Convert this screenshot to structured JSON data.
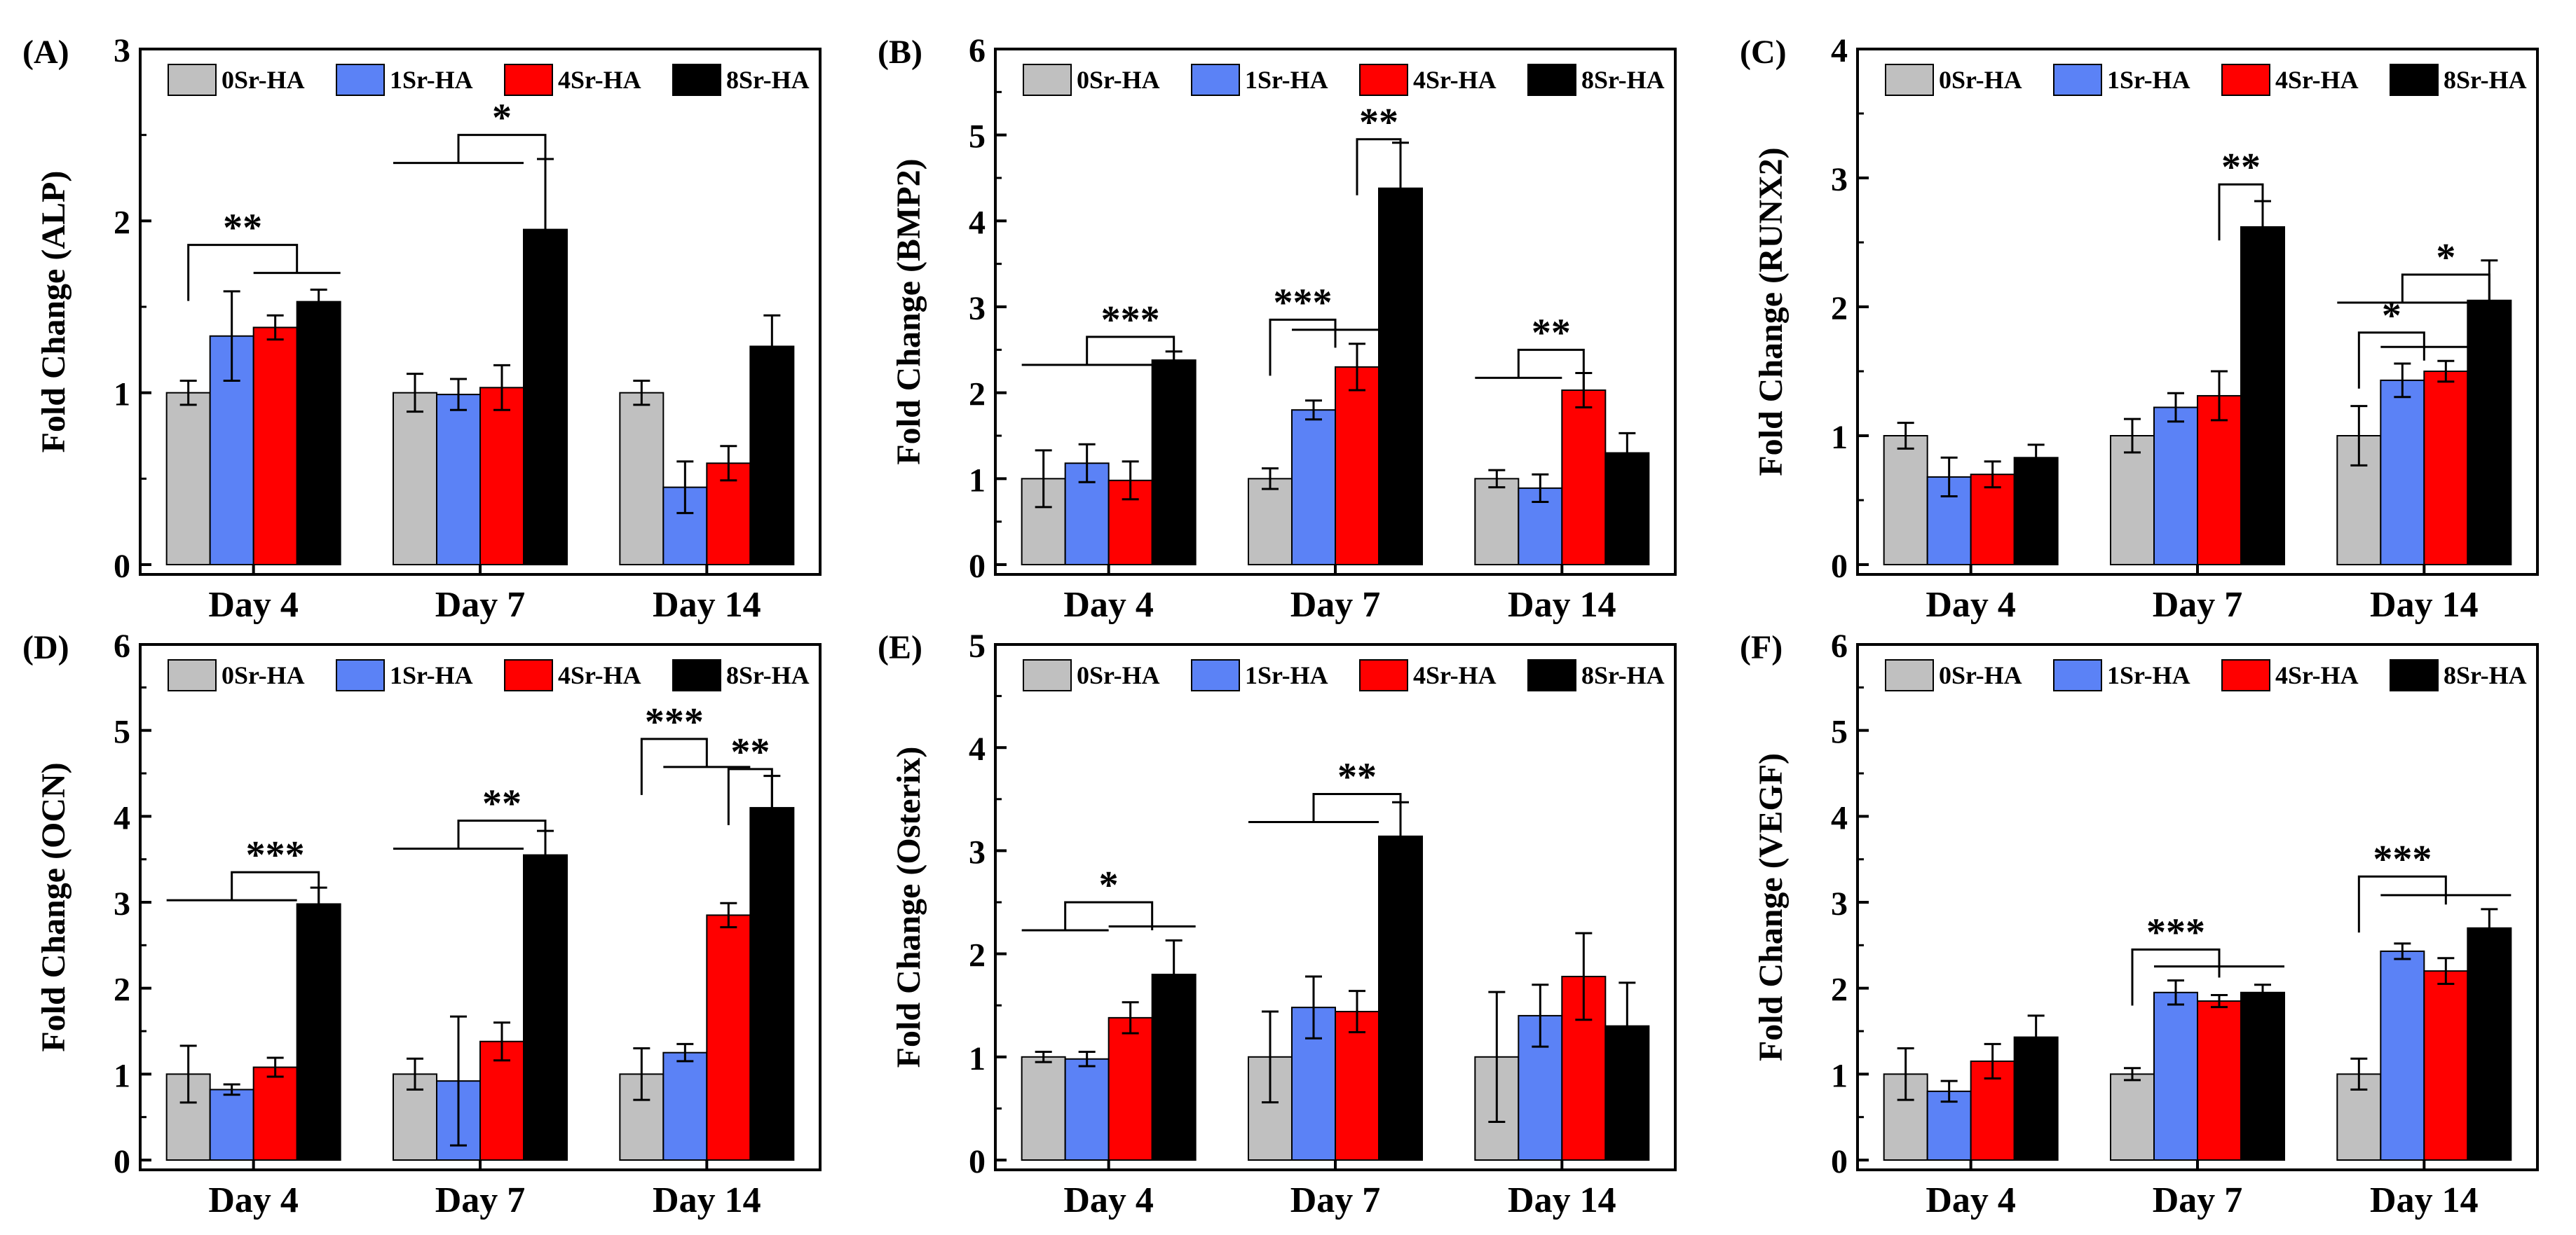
{
  "figure": {
    "series_names": [
      "0Sr-HA",
      "1Sr-HA",
      "4Sr-HA",
      "8Sr-HA"
    ],
    "series_colors": [
      "#c0c0c0",
      "#5b82f6",
      "#ff0000",
      "#000000"
    ],
    "categories": [
      "Day 4",
      "Day 7",
      "Day 14"
    ]
  },
  "chart_data": [
    {
      "type": "bar",
      "panel_label": "(A)",
      "ylabel": "Fold Change (ALP)",
      "ylim": [
        0,
        3
      ],
      "yticks": [
        "0",
        "1",
        "2",
        "3"
      ],
      "categories": [
        "Day 4",
        "Day 7",
        "Day 14"
      ],
      "legend": [
        "0Sr-HA",
        "1Sr-HA",
        "4Sr-HA",
        "8Sr-HA"
      ],
      "series": [
        {
          "name": "0Sr-HA",
          "values": [
            1.0,
            1.0,
            1.0
          ],
          "errors": [
            0.07,
            0.11,
            0.07
          ]
        },
        {
          "name": "1Sr-HA",
          "values": [
            1.33,
            0.99,
            0.45
          ],
          "errors": [
            0.26,
            0.09,
            0.15
          ]
        },
        {
          "name": "4Sr-HA",
          "values": [
            1.38,
            1.03,
            0.59
          ],
          "errors": [
            0.07,
            0.13,
            0.1
          ]
        },
        {
          "name": "8Sr-HA",
          "values": [
            1.53,
            1.95,
            1.27
          ],
          "errors": [
            0.07,
            0.41,
            0.18
          ]
        }
      ],
      "annotations": [
        {
          "text": "**",
          "cat": 0,
          "from": 0,
          "to": [
            2,
            3
          ],
          "y": 1.86
        },
        {
          "text": "*",
          "cat": 1,
          "from": [
            0,
            1,
            2
          ],
          "to": 3,
          "y": 2.5
        }
      ]
    },
    {
      "type": "bar",
      "panel_label": "(B)",
      "ylabel": "Fold Change (BMP2)",
      "ylim": [
        0,
        6
      ],
      "yticks": [
        "0",
        "1",
        "2",
        "3",
        "4",
        "5",
        "6"
      ],
      "categories": [
        "Day 4",
        "Day 7",
        "Day 14"
      ],
      "legend": [
        "0Sr-HA",
        "1Sr-HA",
        "4Sr-HA",
        "8Sr-HA"
      ],
      "series": [
        {
          "name": "0Sr-HA",
          "values": [
            1.0,
            1.0,
            1.0
          ],
          "errors": [
            0.33,
            0.12,
            0.1
          ]
        },
        {
          "name": "1Sr-HA",
          "values": [
            1.18,
            1.8,
            0.89
          ],
          "errors": [
            0.22,
            0.11,
            0.16
          ]
        },
        {
          "name": "4Sr-HA",
          "values": [
            0.98,
            2.3,
            2.03
          ],
          "errors": [
            0.22,
            0.27,
            0.2
          ]
        },
        {
          "name": "8Sr-HA",
          "values": [
            2.38,
            4.38,
            1.3
          ],
          "errors": [
            0.1,
            0.53,
            0.23
          ]
        }
      ],
      "annotations": [
        {
          "text": "***",
          "cat": 0,
          "from": [
            0,
            1,
            2
          ],
          "to": 3,
          "y": 2.65
        },
        {
          "text": "***",
          "cat": 1,
          "from": 0,
          "to": [
            1,
            2
          ],
          "y": 2.85
        },
        {
          "text": "**",
          "cat": 1,
          "from": 2,
          "to": 3,
          "y": 4.95
        },
        {
          "text": "**",
          "cat": 2,
          "from": [
            0,
            1
          ],
          "to": 2,
          "y": 2.5
        }
      ]
    },
    {
      "type": "bar",
      "panel_label": "(C)",
      "ylabel": "Fold Change (RUNX2)",
      "ylim": [
        0,
        4
      ],
      "yticks": [
        "0",
        "1",
        "2",
        "3",
        "4"
      ],
      "categories": [
        "Day 4",
        "Day 7",
        "Day 14"
      ],
      "legend": [
        "0Sr-HA",
        "1Sr-HA",
        "4Sr-HA",
        "8Sr-HA"
      ],
      "series": [
        {
          "name": "0Sr-HA",
          "values": [
            1.0,
            1.0,
            1.0
          ],
          "errors": [
            0.1,
            0.13,
            0.23
          ]
        },
        {
          "name": "1Sr-HA",
          "values": [
            0.68,
            1.22,
            1.43
          ],
          "errors": [
            0.15,
            0.11,
            0.13
          ]
        },
        {
          "name": "4Sr-HA",
          "values": [
            0.7,
            1.31,
            1.5
          ],
          "errors": [
            0.1,
            0.19,
            0.08
          ]
        },
        {
          "name": "8Sr-HA",
          "values": [
            0.83,
            2.62,
            2.05
          ],
          "errors": [
            0.1,
            0.2,
            0.31
          ]
        }
      ],
      "annotations": [
        {
          "text": "**",
          "cat": 1,
          "from": 2,
          "to": 3,
          "y": 2.95
        },
        {
          "text": "*",
          "cat": 2,
          "from": [
            0,
            1,
            2
          ],
          "to": 3,
          "y": 2.25
        },
        {
          "text": "*",
          "cat": 2,
          "from": 0,
          "to": [
            1,
            2
          ],
          "y": 1.8
        }
      ]
    },
    {
      "type": "bar",
      "panel_label": "(D)",
      "ylabel": "Fold Change (OCN)",
      "ylim": [
        0,
        6
      ],
      "yticks": [
        "0",
        "1",
        "2",
        "3",
        "4",
        "5",
        "6"
      ],
      "categories": [
        "Day 4",
        "Day 7",
        "Day 14"
      ],
      "legend": [
        "0Sr-HA",
        "1Sr-HA",
        "4Sr-HA",
        "8Sr-HA"
      ],
      "series": [
        {
          "name": "0Sr-HA",
          "values": [
            1.0,
            1.0,
            1.0
          ],
          "errors": [
            0.33,
            0.18,
            0.3
          ]
        },
        {
          "name": "1Sr-HA",
          "values": [
            0.82,
            0.92,
            1.25
          ],
          "errors": [
            0.06,
            0.75,
            0.1
          ]
        },
        {
          "name": "4Sr-HA",
          "values": [
            1.08,
            1.38,
            2.85
          ],
          "errors": [
            0.11,
            0.22,
            0.14
          ]
        },
        {
          "name": "8Sr-HA",
          "values": [
            2.98,
            3.55,
            4.1
          ],
          "errors": [
            0.19,
            0.28,
            0.37
          ]
        }
      ],
      "annotations": [
        {
          "text": "***",
          "cat": 0,
          "from": [
            0,
            1,
            2
          ],
          "to": 3,
          "y": 3.35
        },
        {
          "text": "**",
          "cat": 1,
          "from": [
            0,
            1,
            2
          ],
          "to": 3,
          "y": 3.95
        },
        {
          "text": "***",
          "cat": 2,
          "from": 0,
          "to": [
            1,
            2
          ],
          "y": 4.9
        },
        {
          "text": "**",
          "cat": 2,
          "from": 2,
          "to": 3,
          "y": 4.55
        }
      ]
    },
    {
      "type": "bar",
      "panel_label": "(E)",
      "ylabel": "Fold Change (Osterix)",
      "ylim": [
        0,
        5
      ],
      "yticks": [
        "0",
        "1",
        "2",
        "3",
        "4",
        "5"
      ],
      "categories": [
        "Day 4",
        "Day 7",
        "Day 14"
      ],
      "legend": [
        "0Sr-HA",
        "1Sr-HA",
        "4Sr-HA",
        "8Sr-HA"
      ],
      "series": [
        {
          "name": "0Sr-HA",
          "values": [
            1.0,
            1.0,
            1.0
          ],
          "errors": [
            0.05,
            0.44,
            0.63
          ]
        },
        {
          "name": "1Sr-HA",
          "values": [
            0.98,
            1.48,
            1.4
          ],
          "errors": [
            0.07,
            0.3,
            0.3
          ]
        },
        {
          "name": "4Sr-HA",
          "values": [
            1.38,
            1.44,
            1.78
          ],
          "errors": [
            0.15,
            0.2,
            0.42
          ]
        },
        {
          "name": "8Sr-HA",
          "values": [
            1.8,
            3.14,
            1.3
          ],
          "errors": [
            0.33,
            0.33,
            0.42
          ]
        }
      ],
      "annotations": [
        {
          "text": "*",
          "cat": 0,
          "from": [
            0,
            1
          ],
          "to": [
            2,
            3
          ],
          "y": 2.5
        },
        {
          "text": "**",
          "cat": 1,
          "from": [
            0,
            1,
            2
          ],
          "to": 3,
          "y": 3.55
        }
      ]
    },
    {
      "type": "bar",
      "panel_label": "(F)",
      "ylabel": "Fold Change (VEGF)",
      "ylim": [
        0,
        6
      ],
      "yticks": [
        "0",
        "1",
        "2",
        "3",
        "4",
        "5",
        "6"
      ],
      "categories": [
        "Day 4",
        "Day 7",
        "Day 14"
      ],
      "legend": [
        "0Sr-HA",
        "1Sr-HA",
        "4Sr-HA",
        "8Sr-HA"
      ],
      "series": [
        {
          "name": "0Sr-HA",
          "values": [
            1.0,
            1.0,
            1.0
          ],
          "errors": [
            0.3,
            0.07,
            0.18
          ]
        },
        {
          "name": "1Sr-HA",
          "values": [
            0.8,
            1.95,
            2.43
          ],
          "errors": [
            0.12,
            0.14,
            0.09
          ]
        },
        {
          "name": "4Sr-HA",
          "values": [
            1.15,
            1.85,
            2.2
          ],
          "errors": [
            0.2,
            0.07,
            0.15
          ]
        },
        {
          "name": "8Sr-HA",
          "values": [
            1.43,
            1.95,
            2.7
          ],
          "errors": [
            0.25,
            0.09,
            0.22
          ]
        }
      ],
      "annotations": [
        {
          "text": "***",
          "cat": 1,
          "from": 0,
          "to": [
            1,
            2,
            3
          ],
          "y": 2.45
        },
        {
          "text": "***",
          "cat": 2,
          "from": 0,
          "to": [
            1,
            2,
            3
          ],
          "y": 3.3
        }
      ]
    }
  ]
}
